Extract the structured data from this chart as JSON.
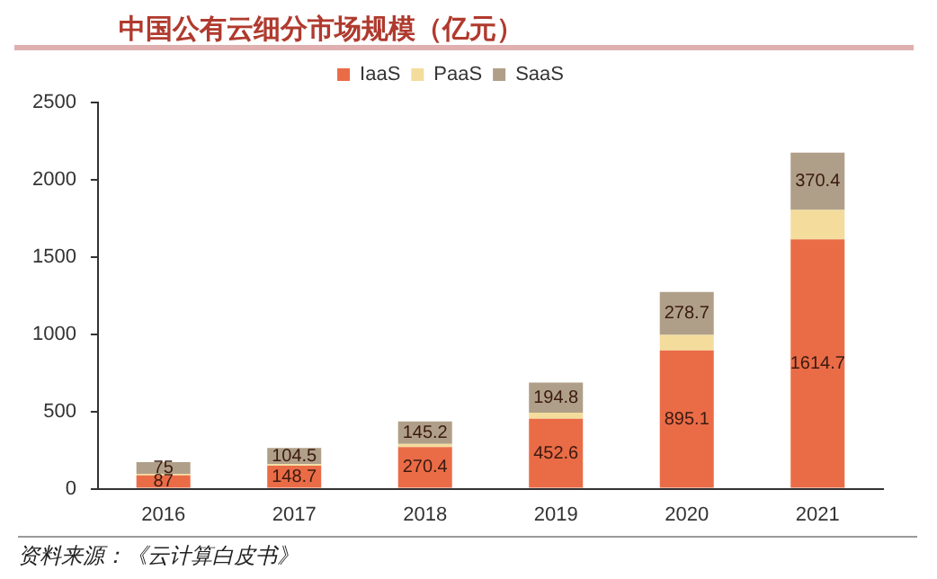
{
  "chart_data": {
    "type": "bar",
    "title": "中国公有云细分市场规模（亿元）",
    "categories": [
      "2016",
      "2017",
      "2018",
      "2019",
      "2020",
      "2021"
    ],
    "stacked": true,
    "ylim": [
      0,
      2500
    ],
    "yticks": [
      0,
      500,
      1000,
      1500,
      2000,
      2500
    ],
    "grid": false,
    "legend": "top",
    "annotations": [
      "资料来源：《云计算白皮书》"
    ],
    "series": [
      {
        "name": "IaaS",
        "color": "#ea6c47",
        "values": [
          87,
          148.7,
          270.4,
          452.6,
          895.1,
          1614.7
        ],
        "value_labels": [
          "87",
          "148.7",
          "270.4",
          "452.6",
          "895.1",
          "1614.7"
        ]
      },
      {
        "name": "PaaS",
        "color": "#f4dc9c",
        "values": [
          10,
          10,
          20,
          40,
          100,
          190
        ],
        "value_labels": [
          null,
          null,
          null,
          null,
          null,
          null
        ]
      },
      {
        "name": "SaaS",
        "color": "#b09f88",
        "values": [
          75,
          104.5,
          145.2,
          194.8,
          278.7,
          370.4
        ],
        "value_labels": [
          "75",
          "104.5",
          "145.2",
          "194.8",
          "278.7",
          "370.4"
        ]
      }
    ]
  }
}
